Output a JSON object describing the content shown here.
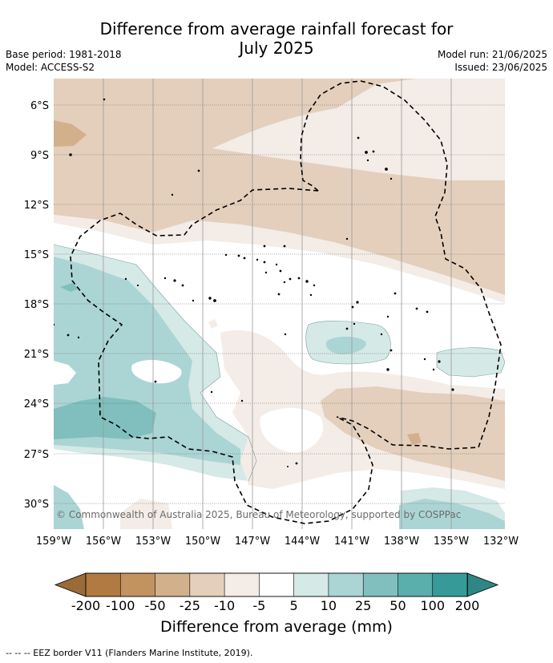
{
  "title_line1": "Difference from average rainfall forecast for",
  "title_line2": "July 2025",
  "base_period": "Base period: 1981-2018",
  "model": "Model: ACCESS-S2",
  "model_run": "Model run: 21/06/2025",
  "issued": "Issued: 23/06/2025",
  "copyright": "© Commonwealth of Australia 2025, Bureau of Meteorology, supported by COSPPac",
  "lat_labels": [
    "6°S",
    "9°S",
    "12°S",
    "15°S",
    "18°S",
    "21°S",
    "24°S",
    "27°S",
    "30°S"
  ],
  "lon_labels": [
    "159°W",
    "156°W",
    "153°W",
    "150°W",
    "147°W",
    "144°W",
    "141°W",
    "138°W",
    "135°W",
    "132°W"
  ],
  "legend": {
    "title": "Difference from average (mm)",
    "ticks": [
      "-200",
      "-100",
      "-50",
      "-25",
      "-10",
      "-5",
      "5",
      "10",
      "25",
      "50",
      "100",
      "200"
    ],
    "colors": [
      "#b07a42",
      "#c2925f",
      "#d3b08c",
      "#e4cfbc",
      "#f4ece6",
      "#ffffff",
      "#d5e9e7",
      "#abd5d4",
      "#80bfbe",
      "#5aaeab",
      "#369b98"
    ],
    "low_cap_color": "#9b6a39",
    "high_cap_color": "#2e8784"
  },
  "footer": "-- -- -- EEZ border V11 (Flanders Marine Institute, 2019)."
}
